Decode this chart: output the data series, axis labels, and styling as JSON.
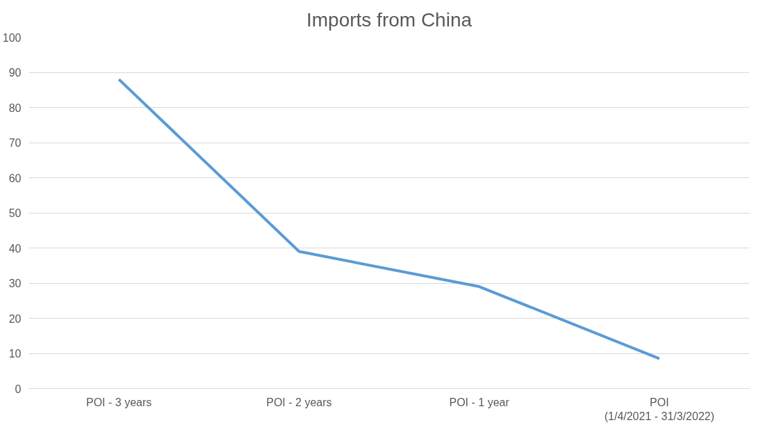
{
  "chart_data": {
    "type": "line",
    "title": "Imports from China",
    "categories": [
      "POI - 3 years",
      "POI - 2 years",
      "POI - 1 year",
      "POI\n(1/4/2021 - 31/3/2022)"
    ],
    "series": [
      {
        "color": "#5b9bd5",
        "values": [
          88,
          39,
          29,
          8.5
        ]
      }
    ],
    "ylim": [
      0,
      100
    ],
    "yticks": [
      0,
      10,
      20,
      30,
      40,
      50,
      60,
      70,
      80,
      90,
      100
    ],
    "grid": "y",
    "marker": "none",
    "line_style": "solid"
  }
}
